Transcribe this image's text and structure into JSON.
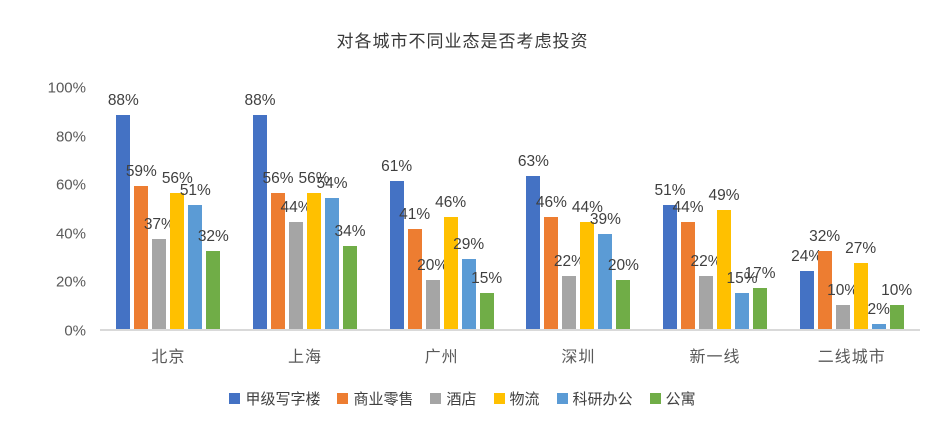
{
  "chart_data": {
    "type": "bar",
    "title": "对各城市不同业态是否考虑投资",
    "categories": [
      "北京",
      "上海",
      "广州",
      "深圳",
      "新一线",
      "二线城市"
    ],
    "series": [
      {
        "name": "甲级写字楼",
        "color": "#4472C4",
        "values": [
          88,
          88,
          61,
          63,
          51,
          24
        ]
      },
      {
        "name": "商业零售",
        "color": "#ED7D31",
        "values": [
          59,
          56,
          41,
          46,
          44,
          32
        ]
      },
      {
        "name": "酒店",
        "color": "#A5A5A5",
        "values": [
          37,
          44,
          20,
          22,
          22,
          10
        ]
      },
      {
        "name": "物流",
        "color": "#FFC000",
        "values": [
          56,
          56,
          46,
          44,
          49,
          27
        ]
      },
      {
        "name": "科研办公",
        "color": "#5B9BD5",
        "values": [
          51,
          54,
          29,
          39,
          15,
          2
        ]
      },
      {
        "name": "公寓",
        "color": "#70AD47",
        "values": [
          32,
          34,
          15,
          20,
          17,
          10
        ]
      }
    ],
    "y_ticks": [
      {
        "label": "100%",
        "value": 100
      },
      {
        "label": "80%",
        "value": 80
      },
      {
        "label": "60%",
        "value": 60
      },
      {
        "label": "40%",
        "value": 40
      },
      {
        "label": "20%",
        "value": 20
      },
      {
        "label": "0%",
        "value": 0
      }
    ],
    "ylim": [
      0,
      100
    ],
    "value_suffix": "%",
    "grid": false,
    "legend_position": "bottom",
    "axis_line_color": "#d9d9d9"
  }
}
